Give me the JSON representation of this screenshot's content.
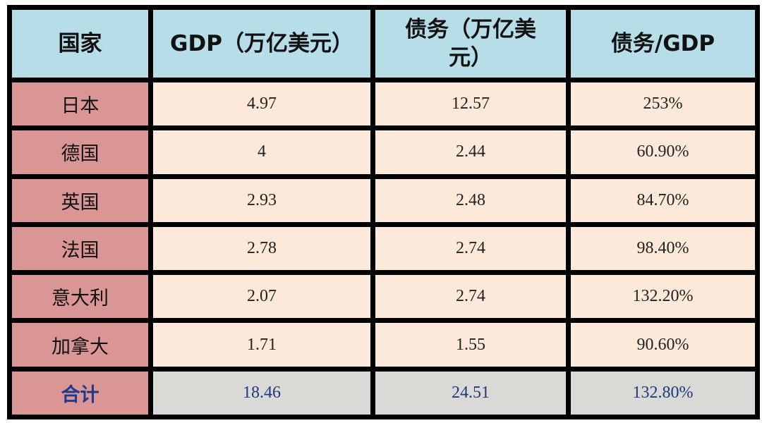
{
  "table": {
    "header": [
      "国家",
      "GDP（万亿美元）",
      "债务（万亿美元）",
      "债务/GDP"
    ],
    "rows": [
      [
        "日本",
        "4.97",
        "12.57",
        "253%"
      ],
      [
        "德国",
        "4",
        "2.44",
        "60.90%"
      ],
      [
        "英国",
        "2.93",
        "2.48",
        "84.70%"
      ],
      [
        "法国",
        "2.78",
        "2.74",
        "98.40%"
      ],
      [
        "意大利",
        "2.07",
        "2.74",
        "132.20%"
      ],
      [
        "加拿大",
        "1.71",
        "1.55",
        "90.60%"
      ]
    ],
    "total": [
      "合计",
      "18.46",
      "24.51",
      "132.80%"
    ]
  }
}
